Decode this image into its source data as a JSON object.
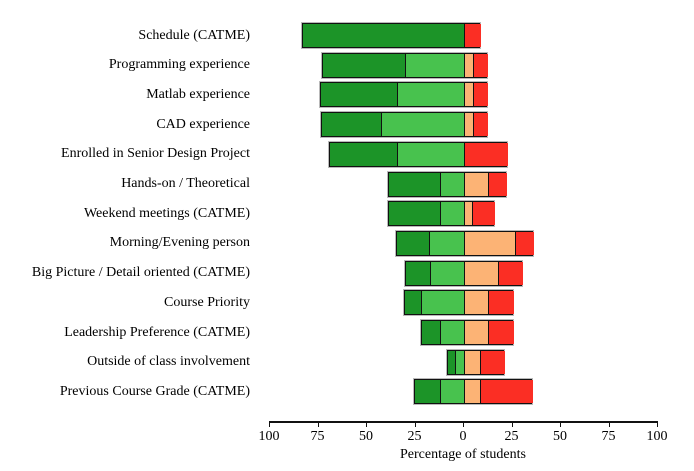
{
  "chart_data": {
    "type": "bar",
    "variant": "diverging-stacked-horizontal",
    "title": "",
    "xlabel": "Percentage of students",
    "ylabel": "",
    "xlim": [
      -100,
      100
    ],
    "grid": false,
    "legend": false,
    "x_tick_values": [
      -100,
      -75,
      -50,
      -25,
      0,
      25,
      50,
      75,
      100
    ],
    "x_tick_labels": [
      "100",
      "75",
      "50",
      "25",
      "0",
      "25",
      "50",
      "75",
      "100"
    ],
    "categories": [
      "Schedule (CATME)",
      "Programming experience",
      "Matlab experience",
      "CAD experience",
      "Enrolled in Senior Design Project",
      "Hands-on / Theoretical",
      "Weekend meetings (CATME)",
      "Morning/Evening person",
      "Big Picture / Detail oriented (CATME)",
      "Course Priority",
      "Leadership Preference (CATME)",
      "Outside of class involvement",
      "Previous Course Grade (CATME)"
    ],
    "series": [
      {
        "name": "dark-green",
        "side": "left",
        "color": "#1c9428",
        "values": [
          83,
          42,
          39,
          30,
          34.5,
          26,
          26,
          16.5,
          12.5,
          8.5,
          9,
          3.5,
          13
        ]
      },
      {
        "name": "light-green",
        "side": "left",
        "color": "#48c24e",
        "values": [
          0,
          30.5,
          34.5,
          43,
          34.5,
          12.5,
          12.5,
          18,
          17.5,
          22,
          12.5,
          4.5,
          12.5
        ]
      },
      {
        "name": "orange",
        "side": "right",
        "color": "#fcb375",
        "values": [
          0,
          4.5,
          4.5,
          4.5,
          0,
          12.5,
          4,
          26.5,
          17.5,
          12.5,
          12.5,
          8.5,
          8.5
        ]
      },
      {
        "name": "red",
        "side": "right",
        "color": "#fb2e24",
        "values": [
          9,
          8,
          8,
          8,
          22.5,
          9.5,
          12,
          9.5,
          13,
          13.5,
          13.5,
          12.5,
          27
        ]
      }
    ]
  }
}
